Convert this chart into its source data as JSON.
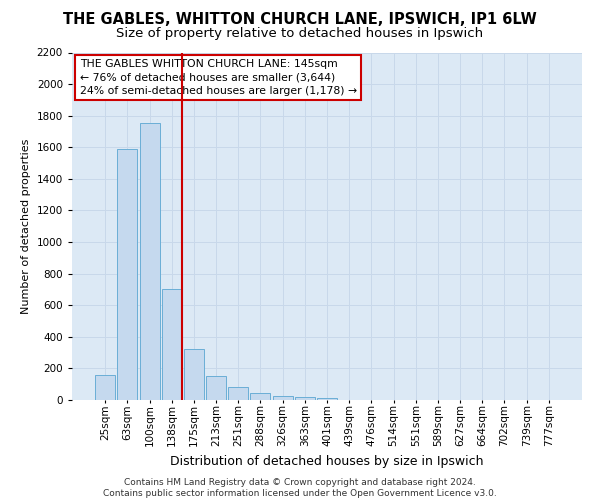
{
  "title1": "THE GABLES, WHITTON CHURCH LANE, IPSWICH, IP1 6LW",
  "title2": "Size of property relative to detached houses in Ipswich",
  "xlabel": "Distribution of detached houses by size in Ipswich",
  "ylabel": "Number of detached properties",
  "footer1": "Contains HM Land Registry data © Crown copyright and database right 2024.",
  "footer2": "Contains public sector information licensed under the Open Government Licence v3.0.",
  "categories": [
    "25sqm",
    "63sqm",
    "100sqm",
    "138sqm",
    "175sqm",
    "213sqm",
    "251sqm",
    "288sqm",
    "326sqm",
    "363sqm",
    "401sqm",
    "439sqm",
    "476sqm",
    "514sqm",
    "551sqm",
    "589sqm",
    "627sqm",
    "664sqm",
    "702sqm",
    "739sqm",
    "777sqm"
  ],
  "values": [
    160,
    1590,
    1755,
    700,
    320,
    155,
    80,
    45,
    25,
    18,
    15,
    0,
    0,
    0,
    0,
    0,
    0,
    0,
    0,
    0,
    0
  ],
  "bar_color": "#c5d9ee",
  "bar_edge_color": "#6aaed6",
  "red_line_index": 3,
  "annotation_text": "THE GABLES WHITTON CHURCH LANE: 145sqm\n← 76% of detached houses are smaller (3,644)\n24% of semi-detached houses are larger (1,178) →",
  "annotation_box_color": "#ffffff",
  "annotation_border_color": "#cc0000",
  "ylim": [
    0,
    2200
  ],
  "yticks": [
    0,
    200,
    400,
    600,
    800,
    1000,
    1200,
    1400,
    1600,
    1800,
    2000,
    2200
  ],
  "grid_color": "#c8d8ea",
  "background_color": "#dce9f5",
  "red_line_color": "#cc0000",
  "title1_fontsize": 10.5,
  "title2_fontsize": 9.5,
  "ylabel_fontsize": 8,
  "xlabel_fontsize": 9,
  "footer_fontsize": 6.5,
  "annot_fontsize": 7.8,
  "tick_fontsize": 7.5
}
